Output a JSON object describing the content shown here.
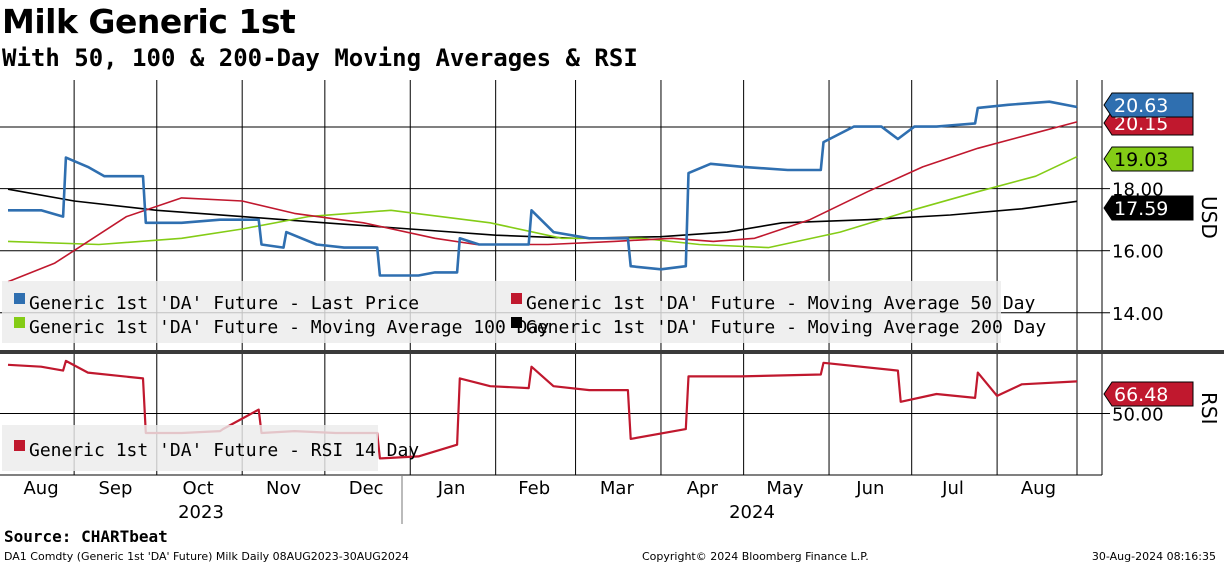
{
  "header": {
    "title": "Milk Generic 1st",
    "subtitle": "With 50, 100 & 200-Day Moving Averages & RSI"
  },
  "footer": {
    "source": "Source: CHARTbeat",
    "ticker_info": "DA1 Comdty (Generic 1st 'DA' Future) Milk  Daily 08AUG2023-30AUG2024",
    "copyright": "Copyright© 2024 Bloomberg Finance L.P.",
    "timestamp": "30-Aug-2024 08:16:35"
  },
  "colors": {
    "last_price": "#2f6fb0",
    "ma50": "#c0182e",
    "ma100": "#84cc16",
    "ma200": "#000000",
    "rsi": "#c0182e"
  },
  "chart_data": [
    {
      "type": "line",
      "panel": "price",
      "ylabel": "USD",
      "ylim": [
        12.8,
        21.5
      ],
      "yticks": [
        14.0,
        16.0,
        18.0
      ],
      "ytick_labels": [
        "14.00",
        "16.00",
        "18.00"
      ],
      "x_start": "2023-08-08",
      "x_end": "2024-08-30",
      "months": [
        "Aug",
        "Sep",
        "Oct",
        "Nov",
        "Dec",
        "Jan",
        "Feb",
        "Mar",
        "Apr",
        "May",
        "Jun",
        "Jul",
        "Aug"
      ],
      "years": [
        "2023",
        "2024"
      ],
      "legend": [
        "Generic 1st 'DA' Future - Last Price",
        "Generic 1st 'DA' Future - Moving Average 50 Day",
        "Generic 1st 'DA' Future - Moving Average 100 Day",
        "Generic 1st 'DA' Future - Moving Average 200 Day"
      ],
      "series": [
        {
          "name": "Last Price",
          "last_label": "20.63",
          "x": [
            "2023-08-08",
            "2023-08-20",
            "2023-08-28",
            "2023-08-29",
            "2023-09-06",
            "2023-09-12",
            "2023-09-26",
            "2023-09-27",
            "2023-10-10",
            "2023-10-24",
            "2023-11-07",
            "2023-11-08",
            "2023-11-16",
            "2023-11-17",
            "2023-11-28",
            "2023-12-08",
            "2023-12-20",
            "2023-12-21",
            "2024-01-04",
            "2024-01-10",
            "2024-01-18",
            "2024-01-19",
            "2024-01-26",
            "2024-02-06",
            "2024-02-13",
            "2024-02-14",
            "2024-02-22",
            "2024-03-06",
            "2024-03-20",
            "2024-03-21",
            "2024-04-01",
            "2024-04-10",
            "2024-04-11",
            "2024-04-19",
            "2024-05-01",
            "2024-05-17",
            "2024-05-29",
            "2024-05-30",
            "2024-06-10",
            "2024-06-20",
            "2024-06-26",
            "2024-07-02",
            "2024-07-10",
            "2024-07-24",
            "2024-07-25",
            "2024-08-05",
            "2024-08-20",
            "2024-08-30"
          ],
          "values": [
            17.3,
            17.3,
            17.1,
            19.0,
            18.7,
            18.4,
            18.4,
            16.9,
            16.9,
            17.0,
            17.0,
            16.2,
            16.1,
            16.6,
            16.2,
            16.1,
            16.1,
            15.2,
            15.2,
            15.3,
            15.3,
            16.4,
            16.2,
            16.2,
            16.2,
            17.3,
            16.6,
            16.4,
            16.4,
            15.5,
            15.4,
            15.5,
            18.5,
            18.8,
            18.7,
            18.6,
            18.6,
            19.5,
            20.0,
            20.0,
            19.6,
            20.0,
            20.0,
            20.1,
            20.6,
            20.7,
            20.8,
            20.63
          ]
        },
        {
          "name": "Moving Average 50 Day",
          "last_label": "20.15",
          "x": [
            "2023-08-08",
            "2023-08-25",
            "2023-09-20",
            "2023-10-10",
            "2023-11-01",
            "2023-11-20",
            "2023-12-15",
            "2024-01-10",
            "2024-01-25",
            "2024-02-20",
            "2024-03-15",
            "2024-04-05",
            "2024-04-20",
            "2024-05-05",
            "2024-05-25",
            "2024-06-15",
            "2024-07-05",
            "2024-07-25",
            "2024-08-15",
            "2024-08-30"
          ],
          "values": [
            15.0,
            15.6,
            17.1,
            17.7,
            17.6,
            17.2,
            16.9,
            16.4,
            16.2,
            16.2,
            16.3,
            16.4,
            16.3,
            16.4,
            17.0,
            17.9,
            18.7,
            19.3,
            19.8,
            20.15
          ]
        },
        {
          "name": "Moving Average 100 Day",
          "last_label": "19.03",
          "x": [
            "2023-08-08",
            "2023-09-10",
            "2023-10-10",
            "2023-11-01",
            "2023-11-25",
            "2023-12-25",
            "2024-01-30",
            "2024-02-25",
            "2024-03-25",
            "2024-04-15",
            "2024-05-10",
            "2024-06-05",
            "2024-07-01",
            "2024-07-25",
            "2024-08-15",
            "2024-08-30"
          ],
          "values": [
            16.3,
            16.2,
            16.4,
            16.7,
            17.1,
            17.3,
            16.9,
            16.4,
            16.4,
            16.2,
            16.1,
            16.6,
            17.3,
            17.9,
            18.4,
            19.03
          ]
        },
        {
          "name": "Moving Average 200 Day",
          "last_label": "17.59",
          "x": [
            "2023-08-08",
            "2023-09-01",
            "2023-10-01",
            "2023-11-01",
            "2023-12-01",
            "2024-01-01",
            "2024-02-01",
            "2024-03-01",
            "2024-04-01",
            "2024-04-25",
            "2024-05-15",
            "2024-06-15",
            "2024-07-15",
            "2024-08-10",
            "2024-08-30"
          ],
          "values": [
            17.98,
            17.6,
            17.3,
            17.1,
            16.9,
            16.7,
            16.5,
            16.4,
            16.45,
            16.6,
            16.9,
            17.0,
            17.15,
            17.35,
            17.59
          ]
        }
      ]
    },
    {
      "type": "line",
      "panel": "rsi",
      "ylabel": "RSI",
      "ylim": [
        20,
        80
      ],
      "yticks": [
        50.0
      ],
      "ytick_labels": [
        "50.00"
      ],
      "legend": [
        "Generic 1st 'DA' Future - RSI 14 Day"
      ],
      "series": [
        {
          "name": "RSI 14 Day",
          "last_label": "66.48",
          "x": [
            "2023-08-08",
            "2023-08-20",
            "2023-08-28",
            "2023-08-29",
            "2023-09-06",
            "2023-09-26",
            "2023-09-27",
            "2023-10-10",
            "2023-10-24",
            "2023-10-25",
            "2023-11-07",
            "2023-11-08",
            "2023-11-20",
            "2023-12-05",
            "2023-12-20",
            "2023-12-21",
            "2024-01-04",
            "2024-01-18",
            "2024-01-19",
            "2024-01-30",
            "2024-02-13",
            "2024-02-14",
            "2024-02-22",
            "2024-03-06",
            "2024-03-20",
            "2024-03-21",
            "2024-04-10",
            "2024-04-11",
            "2024-04-30",
            "2024-05-29",
            "2024-05-30",
            "2024-06-26",
            "2024-06-27",
            "2024-07-10",
            "2024-07-24",
            "2024-07-25",
            "2024-08-01",
            "2024-08-10",
            "2024-08-30"
          ],
          "values": [
            75,
            74,
            72,
            77,
            71,
            68,
            40,
            40,
            41,
            42,
            52,
            40,
            41,
            40,
            40,
            27,
            28,
            34,
            68,
            64,
            63,
            74,
            64,
            62,
            62,
            37,
            42,
            69,
            69,
            70,
            76,
            72,
            56,
            60,
            58,
            71,
            59,
            65,
            66.48
          ]
        }
      ]
    }
  ]
}
